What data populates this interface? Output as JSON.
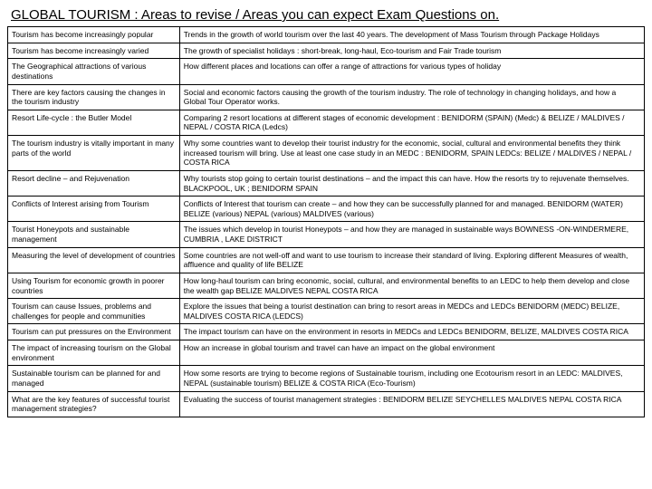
{
  "title": "GLOBAL TOURISM :  Areas to revise / Areas you can expect Exam Questions on.",
  "rows": [
    {
      "topic": "Tourism has become increasingly popular",
      "detail": "Trends in the growth of world tourism over the last 40 years. The development of Mass Tourism through Package Holidays"
    },
    {
      "topic": "Tourism has become increasingly varied",
      "detail": "The growth of specialist holidays : short-break, long-haul, Eco-tourism and Fair Trade tourism"
    },
    {
      "topic": "The Geographical attractions of various destinations",
      "detail": "How different places and locations can offer a range of attractions for various types of holiday"
    },
    {
      "topic": "There are key factors causing the changes in the tourism industry",
      "detail": "Social and economic factors causing the growth of the tourism industry. The role of technology in changing holidays, and how a Global Tour Operator works."
    },
    {
      "topic": "Resort Life-cycle : the Butler Model",
      "detail": "Comparing 2 resort locations at different stages of economic development : BENIDORM (SPAIN) (Medc) & BELIZE / MALDIVES / NEPAL / COSTA RICA (Ledcs)"
    },
    {
      "topic": "The tourism industry is vitally important in many parts of the world",
      "detail": "Why some countries want to develop their tourist industry for the economic, social, cultural and environmental benefits they think increased tourism will bring. Use at least one case study in an MEDC : BENIDORM, SPAIN   LEDCs: BELIZE / MALDIVES / NEPAL / COSTA RICA"
    },
    {
      "topic": "Resort decline – and Rejuvenation",
      "detail": "Why tourists stop going to certain tourist destinations – and the impact this can have. How the resorts try to rejuvenate themselves.  BLACKPOOL, UK   ;    BENIDORM  SPAIN"
    },
    {
      "topic": "Conflicts of Interest arising from Tourism",
      "detail": "Conflicts of Interest that tourism can create – and how they can be successfully planned for and managed.  BENIDORM (WATER)    BELIZE (various)    NEPAL (various) MALDIVES (various)"
    },
    {
      "topic": "Tourist Honeypots and sustainable management",
      "detail": "The issues which develop in tourist Honeypots – and how they are managed in sustainable ways BOWNESS -ON-WINDERMERE, CUMBRIA  ,   LAKE DISTRICT"
    },
    {
      "topic": "Measuring the level of development of countries",
      "detail": "Some countries are not well-off and want to use tourism to increase their standard of living. Exploring different Measures of wealth, affluence and quality of life    BELIZE"
    },
    {
      "topic": "Using Tourism for economic growth in poorer countries",
      "detail": "How long-haul tourism can bring economic, social, cultural, and environmental benefits to an LEDC to help them develop and close the wealth gap  BELIZE   MALDIVES    NEPAL   COSTA RICA"
    },
    {
      "topic": "Tourism can cause Issues, problems and challenges for people and communities",
      "detail": "Explore the issues that being a tourist destination can bring to resort areas in MEDCs and LEDCs  BENIDORM  (MEDC)          BELIZE,   MALDIVES COSTA RICA (LEDCS)"
    },
    {
      "topic": "Tourism can put pressures on the Environment",
      "detail": "The impact tourism can have on the environment in resorts in MEDCs and LEDCs  BENIDORM,    BELIZE,   MALDIVES     COSTA RICA"
    },
    {
      "topic": "The impact of increasing tourism on the Global environment",
      "detail": "How an increase in global tourism and travel can have an impact on the global environment"
    },
    {
      "topic": "Sustainable tourism can be planned for and managed",
      "detail": "How some resorts are trying  to become regions of Sustainable tourism, including one Ecotourism resort in an LEDC: MALDIVES, NEPAL  (sustainable tourism)    BELIZE & COSTA RICA (Eco-Tourism)"
    },
    {
      "topic": "What are the key features of successful tourist management strategies?",
      "detail": "Evaluating the success of tourist management strategies : BENIDORM     BELIZE   SEYCHELLES   MALDIVES  NEPAL   COSTA RICA"
    }
  ]
}
